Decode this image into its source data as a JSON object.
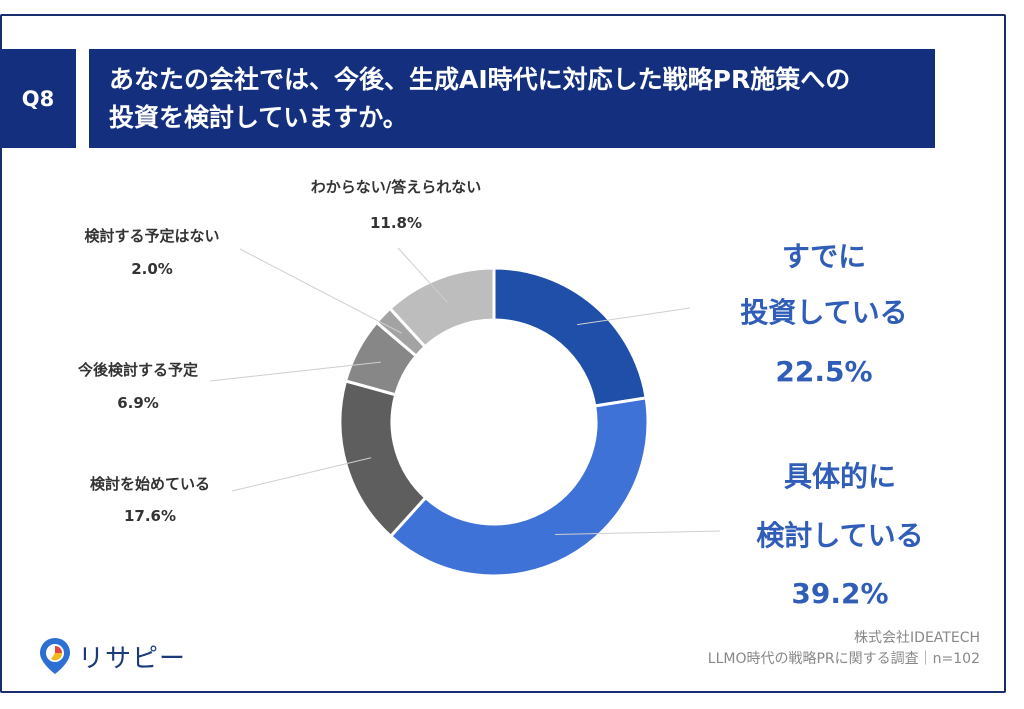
{
  "question": {
    "number": "Q8",
    "title_line1": "あなたの会社では、今後、生成AI時代に対応した戦略PR施策への",
    "title_line2": "投資を検討していますか。"
  },
  "chart_data": {
    "type": "pie",
    "variant": "donut",
    "title": "あなたの会社では、今後、生成AI時代に対応した戦略PR施策への投資を検討していますか。",
    "unit": "%",
    "slices": [
      {
        "label": "すでに投資している",
        "value": 22.5,
        "display": "22.5%",
        "color": "#1f4fa8"
      },
      {
        "label": "具体的に検討している",
        "value": 39.2,
        "display": "39.2%",
        "color": "#3f72d6"
      },
      {
        "label": "検討を始めている",
        "value": 17.6,
        "display": "17.6%",
        "color": "#5e5e5e"
      },
      {
        "label": "今後検討する予定",
        "value": 6.9,
        "display": "6.9%",
        "color": "#878787"
      },
      {
        "label": "検討する予定はない",
        "value": 2.0,
        "display": "2.0%",
        "color": "#a3a3a3"
      },
      {
        "label": "わからない/答えられない",
        "value": 11.8,
        "display": "11.8%",
        "color": "#bdbdbd"
      }
    ]
  },
  "labels": {
    "s0_line1": "すでに",
    "s0_line2": "投資している",
    "s1_line1": "具体的に",
    "s1_line2": "検討している"
  },
  "footer": {
    "company": "株式会社IDEATECH",
    "survey": "LLMO時代の戦略PRに関する調査｜n=102"
  },
  "logo": {
    "text": "リサピー",
    "icon": "pin-pie-icon",
    "colors": [
      "#2d6fd2",
      "#f2b81e",
      "#e8423f"
    ]
  }
}
